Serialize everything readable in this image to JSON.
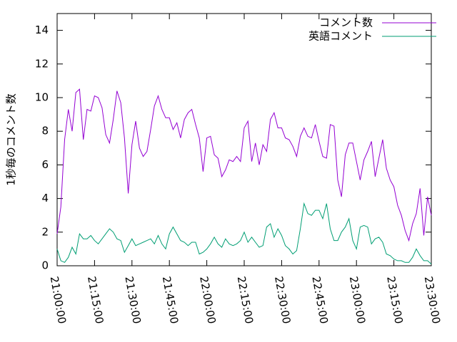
{
  "chart_data": {
    "type": "line",
    "ylabel": "1秒毎のコメント数",
    "x": [
      "21:00:00",
      "21:01:30",
      "21:03:00",
      "21:04:30",
      "21:06:00",
      "21:07:30",
      "21:09:00",
      "21:10:30",
      "21:12:00",
      "21:13:30",
      "21:15:00",
      "21:16:30",
      "21:18:00",
      "21:19:30",
      "21:21:00",
      "21:22:30",
      "21:24:00",
      "21:25:30",
      "21:27:00",
      "21:28:30",
      "21:30:00",
      "21:31:30",
      "21:33:00",
      "21:34:30",
      "21:36:00",
      "21:37:30",
      "21:39:00",
      "21:40:30",
      "21:42:00",
      "21:43:30",
      "21:45:00",
      "21:46:30",
      "21:48:00",
      "21:49:30",
      "21:51:00",
      "21:52:30",
      "21:54:00",
      "21:55:30",
      "21:57:00",
      "21:58:30",
      "22:00:00",
      "22:01:30",
      "22:03:00",
      "22:04:30",
      "22:06:00",
      "22:07:30",
      "22:09:00",
      "22:10:30",
      "22:12:00",
      "22:13:30",
      "22:15:00",
      "22:16:30",
      "22:18:00",
      "22:19:30",
      "22:21:00",
      "22:22:30",
      "22:24:00",
      "22:25:30",
      "22:27:00",
      "22:28:30",
      "22:30:00",
      "22:31:30",
      "22:33:00",
      "22:34:30",
      "22:36:00",
      "22:37:30",
      "22:39:00",
      "22:40:30",
      "22:42:00",
      "22:43:30",
      "22:45:00",
      "22:46:30",
      "22:48:00",
      "22:49:30",
      "22:51:00",
      "22:52:30",
      "22:54:00",
      "22:55:30",
      "22:57:00",
      "22:58:30",
      "23:00:00",
      "23:01:30",
      "23:03:00",
      "23:04:30",
      "23:06:00",
      "23:07:30",
      "23:09:00",
      "23:10:30",
      "23:12:00",
      "23:13:30",
      "23:15:00",
      "23:16:30",
      "23:18:00",
      "23:19:30",
      "23:21:00",
      "23:22:30",
      "23:24:00",
      "23:25:30",
      "23:27:00",
      "23:28:30",
      "23:30:00"
    ],
    "series": [
      {
        "name": "コメント数",
        "color": "#9400d3",
        "values": [
          1.9,
          3.5,
          7.5,
          9.3,
          8.0,
          10.3,
          10.5,
          7.5,
          9.3,
          9.2,
          10.1,
          10.0,
          9.4,
          7.8,
          7.3,
          8.7,
          10.4,
          9.7,
          7.6,
          4.3,
          7.2,
          8.6,
          7.0,
          6.5,
          6.8,
          8.1,
          9.5,
          10.1,
          9.3,
          8.8,
          8.8,
          8.1,
          8.5,
          7.6,
          8.7,
          9.1,
          9.3,
          8.4,
          7.6,
          5.6,
          7.6,
          7.7,
          6.6,
          6.4,
          5.3,
          5.7,
          6.3,
          6.2,
          6.5,
          6.2,
          8.2,
          8.6,
          6.2,
          7.3,
          6.0,
          7.2,
          6.8,
          8.7,
          9.1,
          8.2,
          8.2,
          7.6,
          7.5,
          7.1,
          6.5,
          7.7,
          8.2,
          7.7,
          7.6,
          8.4,
          7.4,
          6.5,
          6.4,
          8.4,
          8.3,
          5.1,
          4.1,
          6.6,
          7.3,
          7.3,
          6.2,
          5.1,
          6.3,
          6.8,
          7.4,
          5.3,
          6.4,
          7.5,
          5.8,
          5.1,
          4.7,
          3.6,
          3.0,
          2.1,
          1.5,
          2.5,
          3.1,
          4.6,
          1.8,
          4.1,
          3.0
        ]
      },
      {
        "name": "英語コメント",
        "color": "#009e73",
        "values": [
          1.0,
          0.3,
          0.2,
          0.5,
          1.1,
          0.7,
          1.9,
          1.6,
          1.6,
          1.8,
          1.5,
          1.3,
          1.6,
          1.9,
          2.2,
          2.0,
          1.6,
          1.5,
          0.8,
          1.2,
          1.6,
          1.2,
          1.3,
          1.4,
          1.5,
          1.6,
          1.3,
          1.8,
          1.3,
          1.0,
          1.9,
          2.3,
          1.9,
          1.5,
          1.4,
          1.2,
          1.4,
          1.4,
          0.7,
          0.8,
          1.0,
          1.3,
          1.7,
          1.3,
          1.1,
          1.6,
          1.3,
          1.2,
          1.3,
          1.5,
          2.0,
          1.4,
          1.7,
          1.4,
          1.1,
          1.2,
          2.3,
          2.5,
          1.7,
          2.2,
          1.8,
          1.2,
          1.0,
          0.7,
          0.9,
          2.2,
          3.7,
          3.1,
          3.0,
          3.3,
          3.3,
          2.8,
          3.7,
          2.2,
          1.5,
          1.5,
          2.0,
          2.3,
          2.8,
          1.5,
          1.0,
          2.3,
          2.4,
          2.3,
          1.3,
          1.6,
          1.7,
          1.4,
          0.7,
          0.6,
          0.4,
          0.3,
          0.3,
          0.2,
          0.2,
          0.5,
          1.0,
          0.6,
          0.3,
          0.3,
          0.1
        ]
      }
    ],
    "xlim": [
      "21:00:00",
      "23:30:00"
    ],
    "xticks": [
      "21:00:00",
      "21:15:00",
      "21:30:00",
      "21:45:00",
      "22:00:00",
      "22:15:00",
      "22:30:00",
      "22:45:00",
      "23:00:00",
      "23:15:00",
      "23:30:00"
    ],
    "ylim": [
      0,
      15
    ],
    "yticks": [
      0,
      2,
      4,
      6,
      8,
      10,
      12,
      14
    ],
    "legend": "top-right",
    "grid": false
  }
}
